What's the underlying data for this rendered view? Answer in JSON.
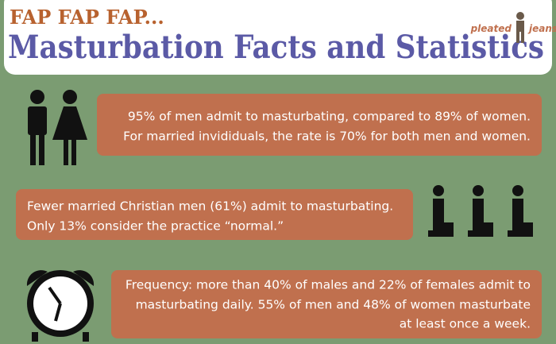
{
  "header": {
    "kicker": "FAP FAP FAP...",
    "title": "Masturbation Facts and Statistics",
    "logo": [
      "pleated",
      "jeans"
    ]
  },
  "facts": [
    {
      "lines": [
        "95% of men admit to masturbating, compared to 89% of women.",
        "For married invididuals, the rate is 70% for both men and women."
      ]
    },
    {
      "lines": [
        "Fewer married Christian men (61%) admit to masturbating.",
        "Only 13% consider the practice “normal.”"
      ]
    },
    {
      "lines": [
        "Frequency: more than 40% of males and 22% of females admit to",
        "masturbating daily. 55% of men and 48% of women masturbate",
        "at least once a week."
      ]
    }
  ]
}
